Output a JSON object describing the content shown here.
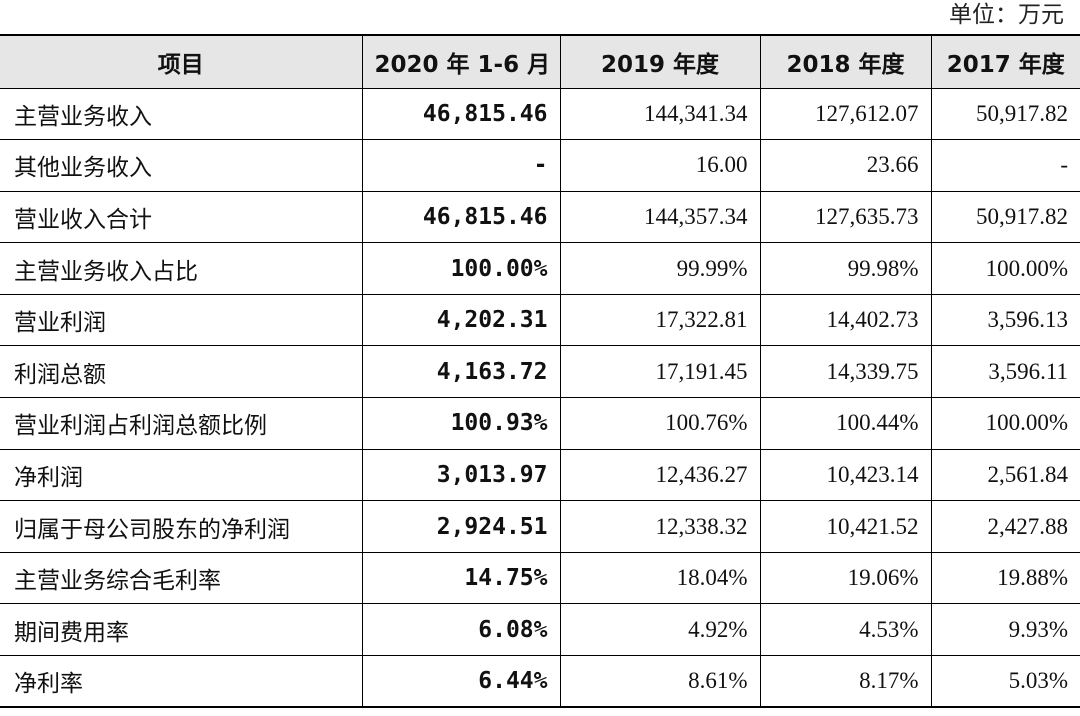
{
  "unit_label": "单位：万元",
  "headers": [
    "项目",
    "2020 年 1-6 月",
    "2019 年度",
    "2018 年度",
    "2017 年度"
  ],
  "rows": [
    {
      "label": "主营业务收入",
      "v2020h1": "46,815.46",
      "v2019": "144,341.34",
      "v2018": "127,612.07",
      "v2017": "50,917.82"
    },
    {
      "label": "其他业务收入",
      "v2020h1": "-",
      "v2019": "16.00",
      "v2018": "23.66",
      "v2017": "-"
    },
    {
      "label": "营业收入合计",
      "v2020h1": "46,815.46",
      "v2019": "144,357.34",
      "v2018": "127,635.73",
      "v2017": "50,917.82"
    },
    {
      "label": "主营业务收入占比",
      "v2020h1": "100.00%",
      "v2019": "99.99%",
      "v2018": "99.98%",
      "v2017": "100.00%"
    },
    {
      "label": "营业利润",
      "v2020h1": "4,202.31",
      "v2019": "17,322.81",
      "v2018": "14,402.73",
      "v2017": "3,596.13"
    },
    {
      "label": "利润总额",
      "v2020h1": "4,163.72",
      "v2019": "17,191.45",
      "v2018": "14,339.75",
      "v2017": "3,596.11"
    },
    {
      "label": "营业利润占利润总额比例",
      "v2020h1": "100.93%",
      "v2019": "100.76%",
      "v2018": "100.44%",
      "v2017": "100.00%"
    },
    {
      "label": "净利润",
      "v2020h1": "3,013.97",
      "v2019": "12,436.27",
      "v2018": "10,423.14",
      "v2017": "2,561.84"
    },
    {
      "label": "归属于母公司股东的净利润",
      "v2020h1": "2,924.51",
      "v2019": "12,338.32",
      "v2018": "10,421.52",
      "v2017": "2,427.88"
    },
    {
      "label": "主营业务综合毛利率",
      "v2020h1": "14.75%",
      "v2019": "18.04%",
      "v2018": "19.06%",
      "v2017": "19.88%"
    },
    {
      "label": "期间费用率",
      "v2020h1": "6.08%",
      "v2019": "4.92%",
      "v2018": "4.53%",
      "v2017": "9.93%"
    },
    {
      "label": "净利率",
      "v2020h1": "6.44%",
      "v2019": "8.61%",
      "v2018": "8.17%",
      "v2017": "5.03%"
    }
  ]
}
